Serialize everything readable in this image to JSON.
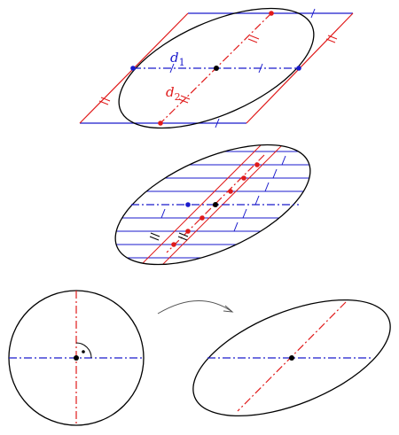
{
  "labels": {
    "d1_letter": "d",
    "d1_index": "1",
    "d2_letter": "d",
    "d2_index": "2"
  },
  "colors": {
    "blue": "#1a1acc",
    "red": "#e01a1a",
    "black": "#000000",
    "arrow": "#555555"
  }
}
